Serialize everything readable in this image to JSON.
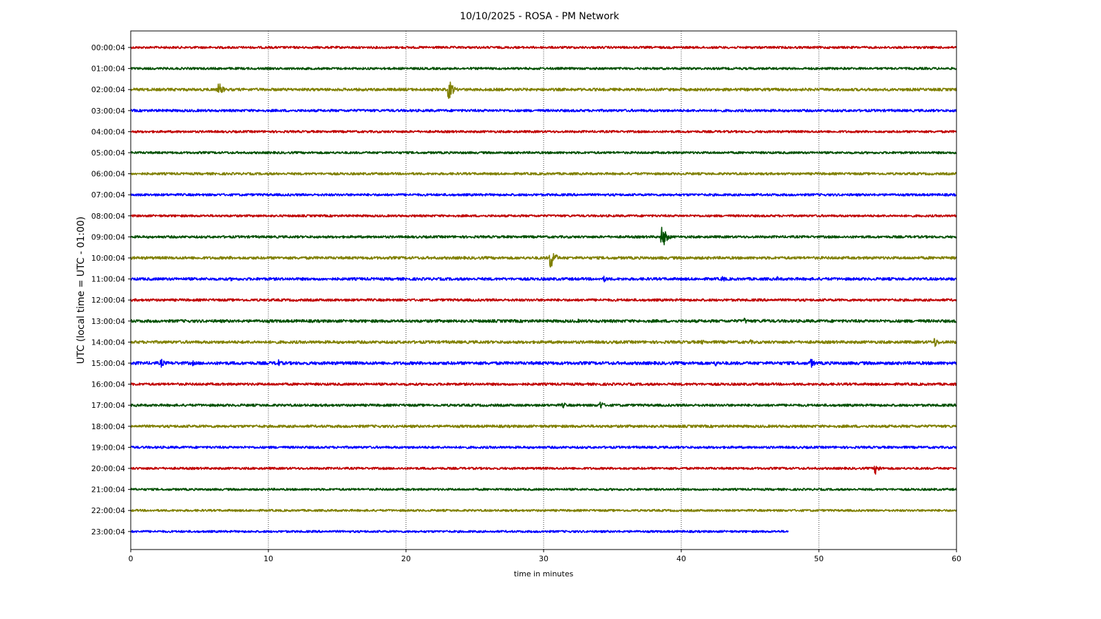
{
  "chart_data": {
    "type": "line",
    "title": "10/10/2025 - ROSA - PM Network",
    "xlabel": "time in minutes",
    "ylabel": "UTC (local time = UTC - 01:00)",
    "xlim": [
      0,
      60
    ],
    "xticks": [
      0,
      10,
      20,
      30,
      40,
      50,
      60
    ],
    "grid": "vertical dotted at x ticks",
    "trace_colors": [
      "#c00000",
      "#005000",
      "#808000",
      "#0000ff"
    ],
    "rows": [
      {
        "label": "00:00:04",
        "end": 60,
        "noise": 0.8,
        "events": []
      },
      {
        "label": "01:00:04",
        "end": 60,
        "noise": 0.8,
        "events": []
      },
      {
        "label": "02:00:04",
        "end": 60,
        "noise": 1.2,
        "events": [
          {
            "t": 3.5,
            "amp": 3
          },
          {
            "t": 6.4,
            "amp": 11
          },
          {
            "t": 23.1,
            "amp": 17
          }
        ]
      },
      {
        "label": "03:00:04",
        "end": 60,
        "noise": 1.0,
        "events": []
      },
      {
        "label": "04:00:04",
        "end": 60,
        "noise": 0.8,
        "events": []
      },
      {
        "label": "05:00:04",
        "end": 60,
        "noise": 0.8,
        "events": [
          {
            "t": 38,
            "amp": 2
          },
          {
            "t": 40.2,
            "amp": 2
          }
        ]
      },
      {
        "label": "06:00:04",
        "end": 60,
        "noise": 0.9,
        "events": []
      },
      {
        "label": "07:00:04",
        "end": 60,
        "noise": 0.9,
        "events": [
          {
            "t": 41,
            "amp": 2
          }
        ]
      },
      {
        "label": "08:00:04",
        "end": 60,
        "noise": 0.8,
        "events": []
      },
      {
        "label": "09:00:04",
        "end": 60,
        "noise": 0.9,
        "events": [
          {
            "t": 38.6,
            "amp": 19
          },
          {
            "t": 57.5,
            "amp": 2
          }
        ]
      },
      {
        "label": "10:00:04",
        "end": 60,
        "noise": 1.2,
        "events": [
          {
            "t": 7.2,
            "amp": 3
          },
          {
            "t": 30.5,
            "amp": 19
          },
          {
            "t": 38.6,
            "amp": 3
          }
        ]
      },
      {
        "label": "11:00:04",
        "end": 60,
        "noise": 1.2,
        "events": [
          {
            "t": 7.3,
            "amp": 3
          },
          {
            "t": 34.4,
            "amp": 5
          },
          {
            "t": 43,
            "amp": 5
          },
          {
            "t": 47,
            "amp": 4
          }
        ]
      },
      {
        "label": "12:00:04",
        "end": 60,
        "noise": 1.0,
        "events": []
      },
      {
        "label": "13:00:04",
        "end": 60,
        "noise": 1.3,
        "events": [
          {
            "t": 10,
            "amp": 3
          },
          {
            "t": 32.5,
            "amp": 3
          },
          {
            "t": 44.6,
            "amp": 5
          },
          {
            "t": 46,
            "amp": 4
          }
        ]
      },
      {
        "label": "14:00:04",
        "end": 60,
        "noise": 1.3,
        "events": [
          {
            "t": 41.5,
            "amp": 4
          },
          {
            "t": 45,
            "amp": 4
          },
          {
            "t": 58.4,
            "amp": 8
          }
        ]
      },
      {
        "label": "15:00:04",
        "end": 60,
        "noise": 1.5,
        "events": [
          {
            "t": 2.2,
            "amp": 7
          },
          {
            "t": 4.5,
            "amp": 4
          },
          {
            "t": 10.6,
            "amp": 8
          },
          {
            "t": 42.5,
            "amp": 5
          },
          {
            "t": 49.4,
            "amp": 8
          }
        ]
      },
      {
        "label": "16:00:04",
        "end": 60,
        "noise": 1.0,
        "events": []
      },
      {
        "label": "17:00:04",
        "end": 60,
        "noise": 1.0,
        "events": [
          {
            "t": 31.4,
            "amp": 5
          },
          {
            "t": 34.1,
            "amp": 7
          }
        ]
      },
      {
        "label": "18:00:04",
        "end": 60,
        "noise": 1.1,
        "events": [
          {
            "t": 36,
            "amp": 2
          }
        ]
      },
      {
        "label": "19:00:04",
        "end": 60,
        "noise": 0.9,
        "events": []
      },
      {
        "label": "20:00:04",
        "end": 60,
        "noise": 0.8,
        "events": [
          {
            "t": 54.1,
            "amp": 9
          }
        ]
      },
      {
        "label": "21:00:04",
        "end": 60,
        "noise": 0.7,
        "events": []
      },
      {
        "label": "22:00:04",
        "end": 60,
        "noise": 0.7,
        "events": []
      },
      {
        "label": "23:00:04",
        "end": 47.8,
        "noise": 0.7,
        "events": []
      }
    ]
  }
}
